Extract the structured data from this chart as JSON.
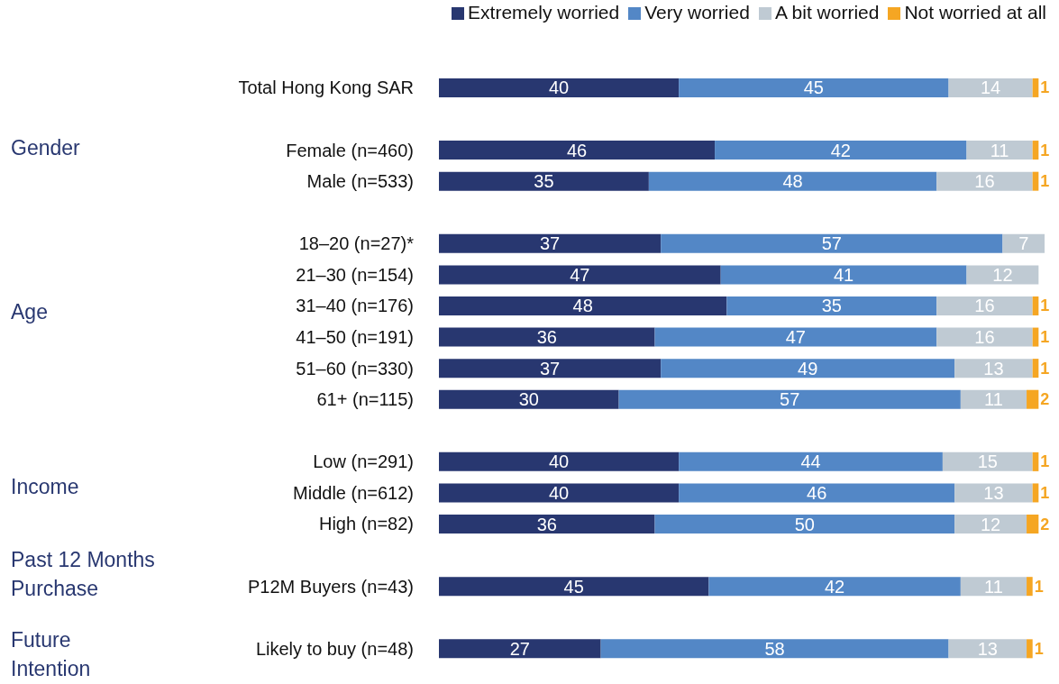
{
  "chart_data": {
    "type": "bar",
    "orientation": "horizontal",
    "stacked": true,
    "data_labels": true,
    "legend": "top right",
    "grid": false,
    "categories": [
      "Total Hong Kong SAR",
      null,
      "Female (n=460)",
      "Male (n=533)",
      null,
      "18–20 (n=27)*",
      "21–30 (n=154)",
      "31–40 (n=176)",
      "41–50 (n=191)",
      "51–60 (n=330)",
      "61+ (n=115)",
      null,
      "Low (n=291)",
      "Middle (n=612)",
      "High (n=82)",
      null,
      "P12M Buyers (n=43)",
      null,
      "Likely to buy (n=48)"
    ],
    "series": [
      {
        "name": "Extremely worried",
        "color": "#283770",
        "values": [
          40,
          null,
          46,
          35,
          null,
          37,
          47,
          48,
          36,
          37,
          30,
          null,
          40,
          40,
          36,
          null,
          45,
          null,
          27
        ]
      },
      {
        "name": "Very worried",
        "color": "#5387c6",
        "values": [
          45,
          null,
          42,
          48,
          null,
          57,
          41,
          35,
          47,
          49,
          57,
          null,
          44,
          46,
          50,
          null,
          42,
          null,
          58
        ]
      },
      {
        "name": "A bit worried",
        "color": "#bfcad3",
        "values": [
          14,
          null,
          11,
          16,
          null,
          7,
          12,
          16,
          16,
          13,
          11,
          null,
          15,
          13,
          12,
          null,
          11,
          null,
          13
        ]
      },
      {
        "name": "Not worried at all",
        "color": "#f5a623",
        "values": [
          1,
          null,
          1,
          1,
          null,
          null,
          null,
          1,
          1,
          1,
          2,
          null,
          1,
          1,
          2,
          null,
          1,
          null,
          1
        ]
      }
    ],
    "annotations": [
      "Gender",
      "Age",
      "Income",
      "Past 12 Months\nPurchase",
      "Future\nIntention"
    ]
  }
}
